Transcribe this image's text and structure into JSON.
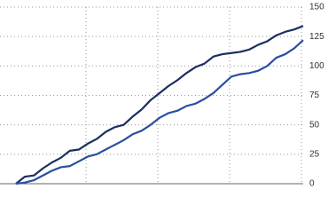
{
  "chart_data": {
    "type": "line",
    "categories": [
      null,
      null,
      null,
      null,
      null,
      null,
      null,
      null,
      null,
      null,
      null,
      null,
      null,
      null,
      null,
      null,
      null,
      null,
      null,
      null,
      null,
      null,
      null,
      null,
      null,
      null,
      null,
      null,
      null,
      null,
      null,
      null,
      null
    ],
    "series": [
      {
        "color": "#1b2f5e",
        "values": [
          0,
          6,
          7,
          13,
          18,
          22,
          28,
          29,
          34,
          38,
          44,
          48,
          50,
          57,
          63,
          71,
          77,
          83,
          88,
          94,
          99,
          102,
          108,
          110,
          111,
          112,
          114,
          118,
          121,
          126,
          129,
          131,
          134
        ]
      },
      {
        "color": "#2a4fa0",
        "values": [
          0,
          1,
          3,
          7,
          11,
          14,
          15,
          19,
          23,
          25,
          29,
          33,
          37,
          42,
          45,
          50,
          56,
          60,
          62,
          66,
          68,
          72,
          77,
          84,
          91,
          93,
          94,
          96,
          100,
          107,
          110,
          115,
          122
        ]
      }
    ],
    "ylim": [
      0,
      150
    ],
    "yticks": [
      0,
      25,
      50,
      75,
      100,
      125,
      150
    ],
    "grid": true
  }
}
